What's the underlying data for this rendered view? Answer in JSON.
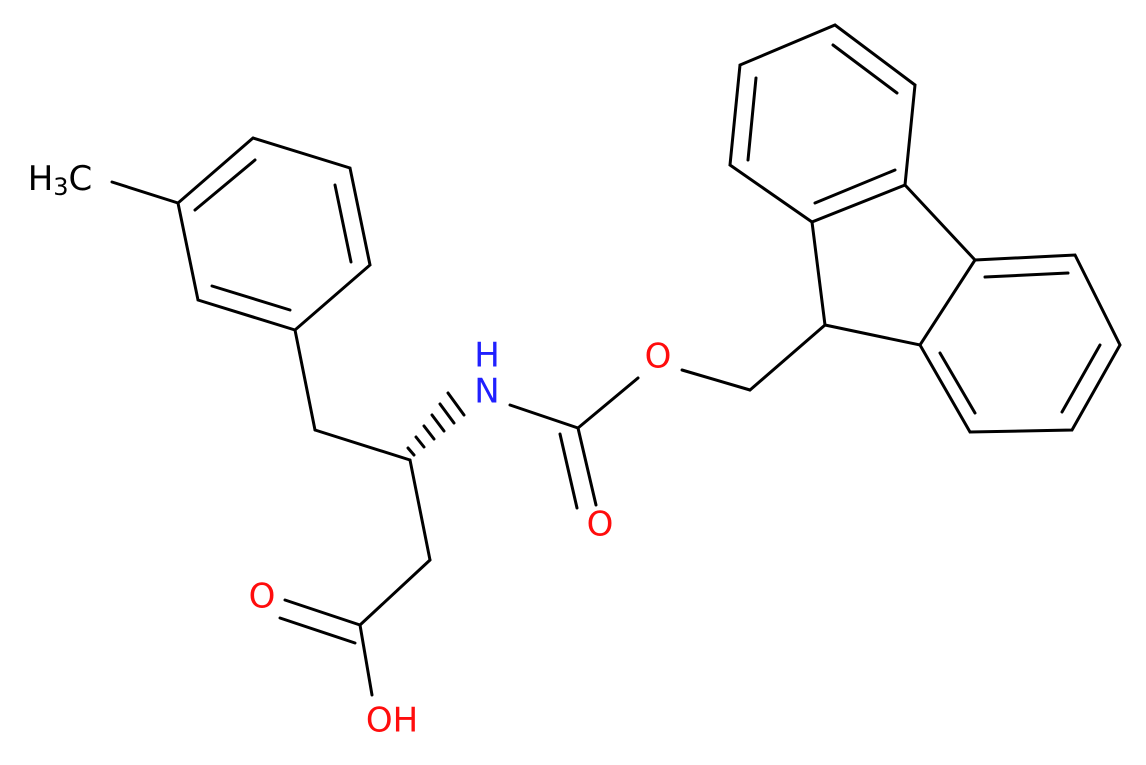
{
  "atoms": {
    "methyl": {
      "base": "H",
      "sub": "3",
      "tail": "C"
    },
    "amine": {
      "h": "H",
      "n": "N"
    },
    "carbamate_o": "O",
    "ester_o": "O",
    "acid_o": "O",
    "acid_oh": "OH"
  }
}
